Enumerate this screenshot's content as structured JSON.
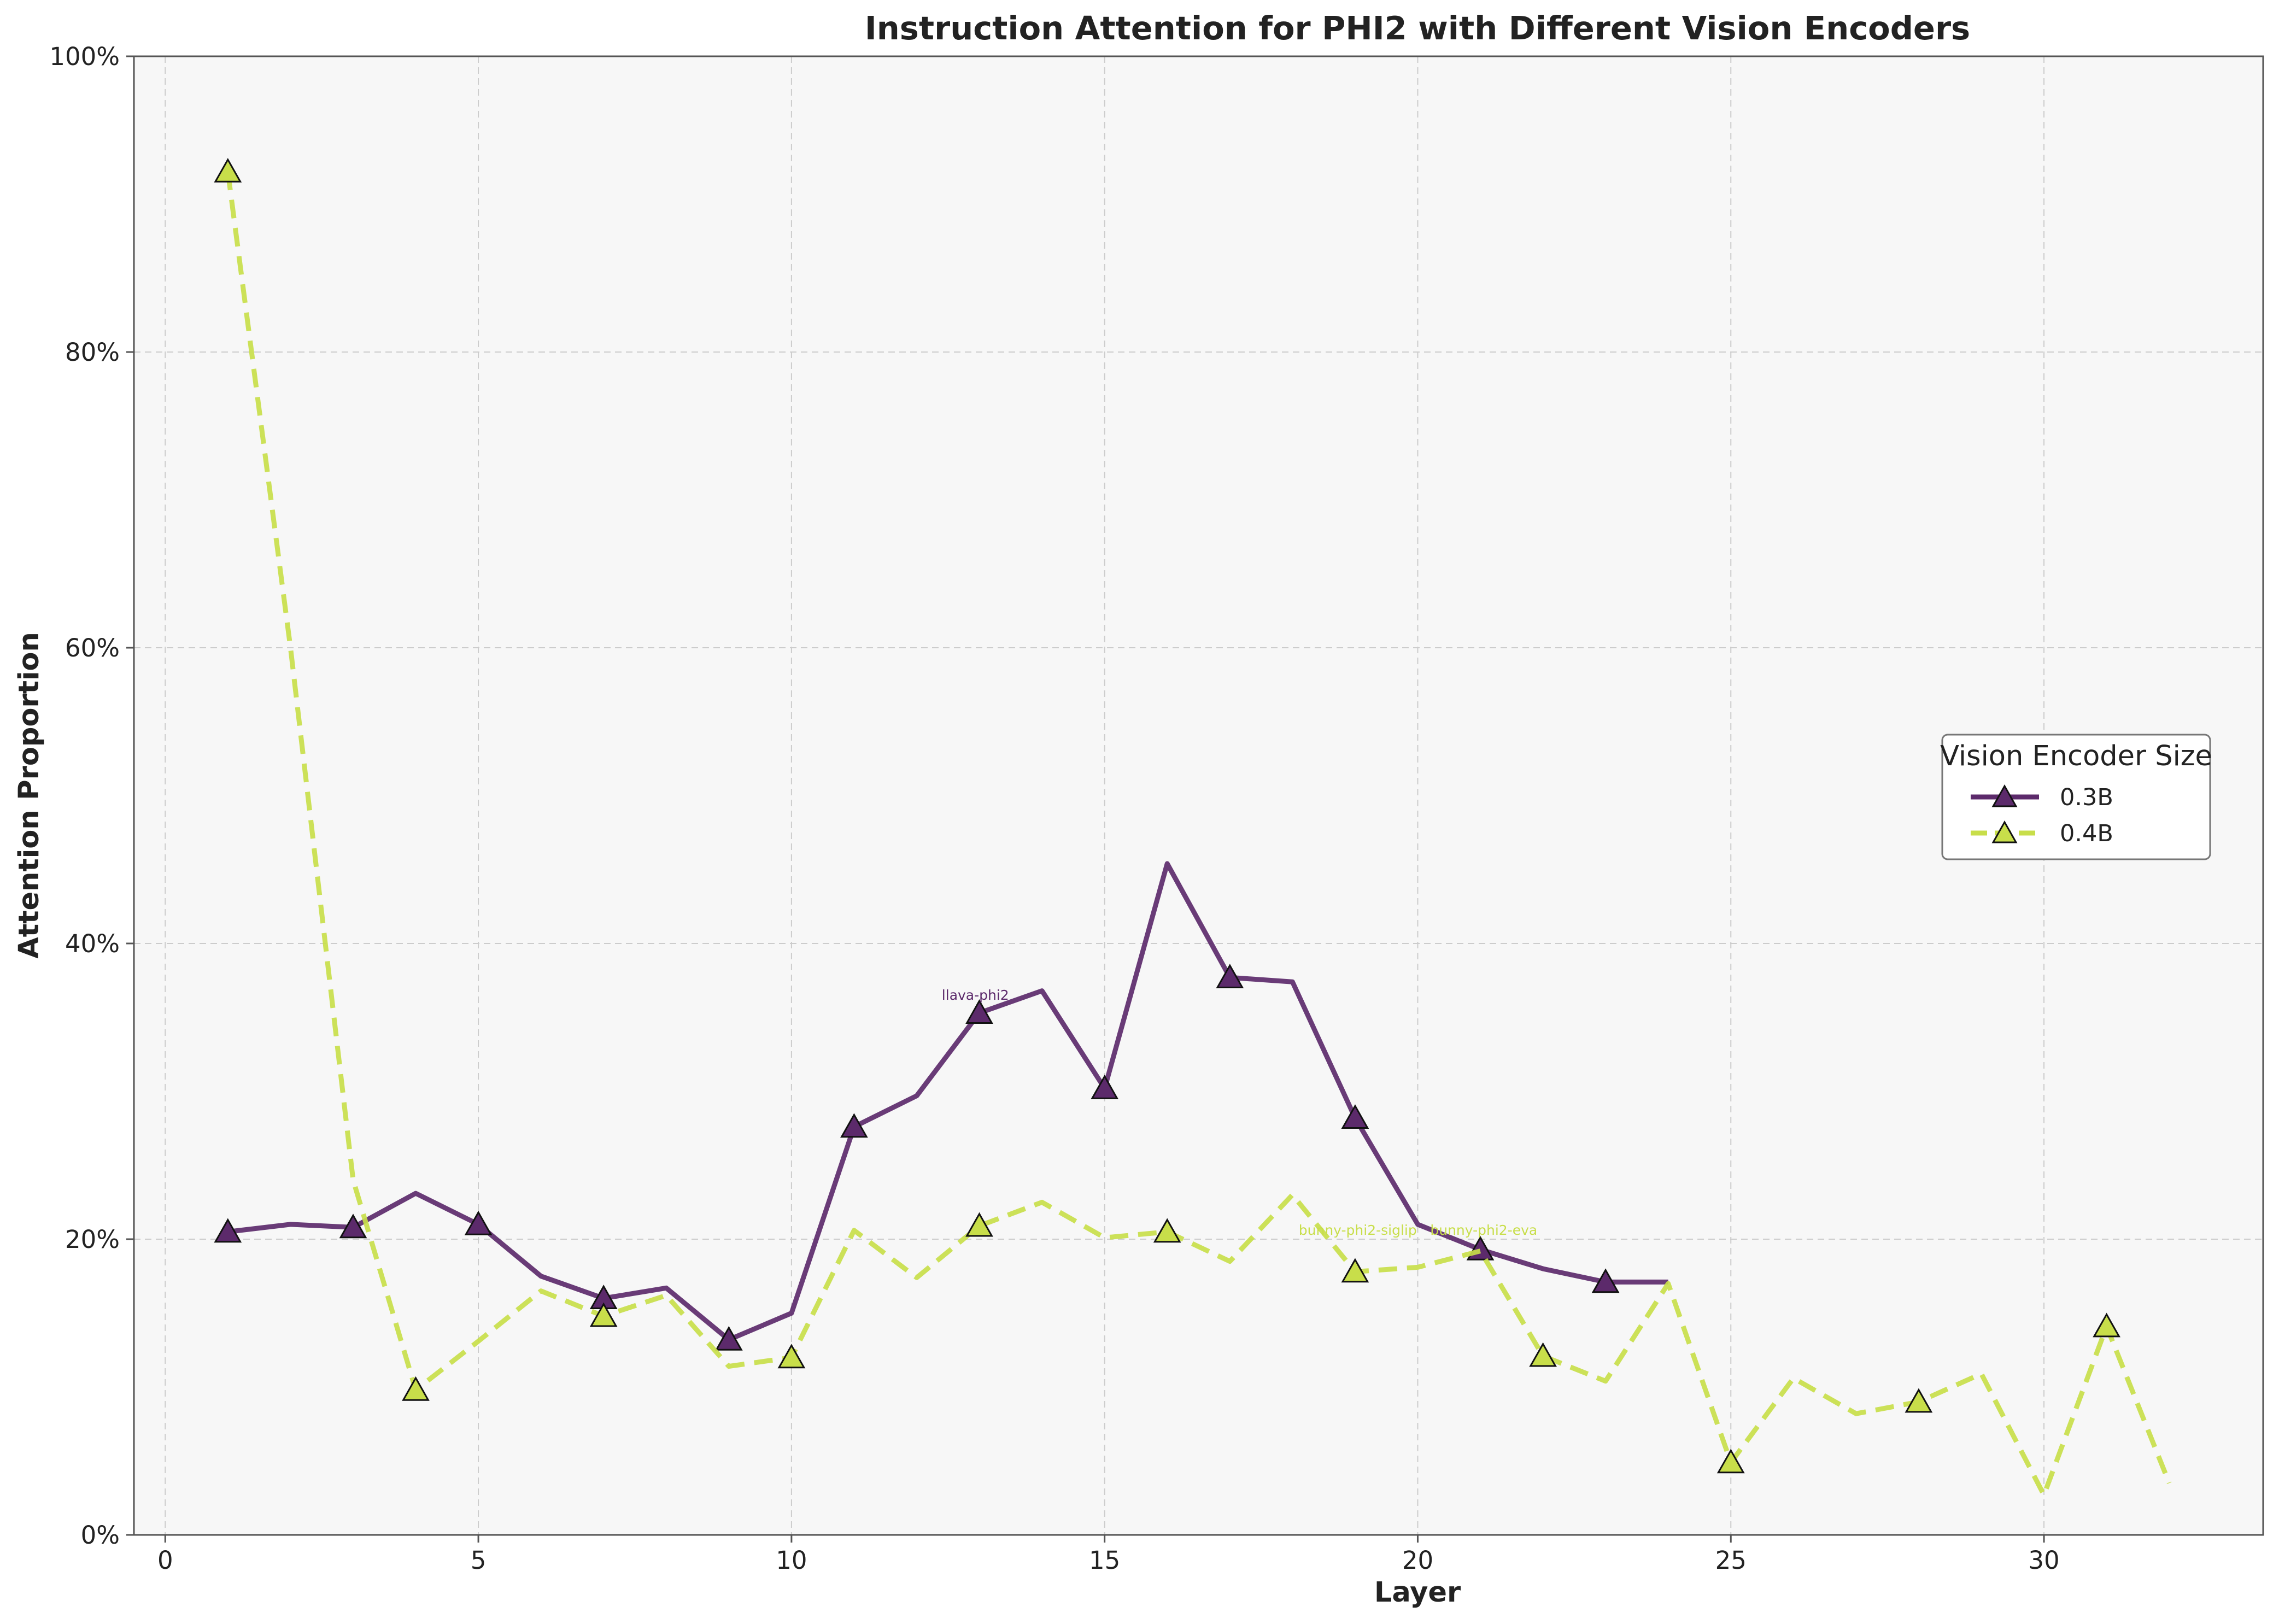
{
  "chart_data": {
    "type": "line",
    "title": "Instruction Attention for PHI2 with Different Vision Encoders",
    "xlabel": "Layer",
    "ylabel": "Attention Proportion",
    "xlim": [
      -0.5,
      33.5
    ],
    "ylim": [
      0,
      1
    ],
    "x_ticks": [
      0,
      5,
      10,
      15,
      20,
      25,
      30
    ],
    "x_tick_labels": [
      "0",
      "5",
      "10",
      "15",
      "20",
      "25",
      "30"
    ],
    "y_ticks": [
      0,
      0.2,
      0.4,
      0.6,
      0.8,
      1.0
    ],
    "y_tick_labels": [
      "0%",
      "20%",
      "40%",
      "60%",
      "80%",
      "100%"
    ],
    "grid": true,
    "legend": {
      "title": "Vision Encoder Size",
      "position": "center-right"
    },
    "series": [
      {
        "name": "0.3B",
        "color": "#5c2a6b",
        "line_style": "solid",
        "marker": "triangle",
        "x": [
          1,
          2,
          3,
          4,
          5,
          6,
          7,
          8,
          9,
          10,
          11,
          12,
          13,
          14,
          15,
          16,
          17,
          18,
          19,
          20,
          21,
          22,
          23,
          24
        ],
        "values": [
          0.205,
          0.21,
          0.208,
          0.231,
          0.21,
          0.175,
          0.16,
          0.167,
          0.132,
          0.15,
          0.276,
          0.297,
          0.353,
          0.368,
          0.302,
          0.454,
          0.377,
          0.374,
          0.282,
          0.21,
          0.193,
          0.18,
          0.171,
          0.171
        ],
        "marker_x": [
          1,
          3,
          5,
          7,
          9,
          11,
          13,
          15,
          17,
          19,
          21,
          23
        ]
      },
      {
        "name": "0.4B",
        "color": "#c8de4a",
        "line_style": "dashed",
        "marker": "triangle",
        "x": [
          1,
          2,
          3,
          4,
          5,
          6,
          7,
          8,
          9,
          10,
          11,
          12,
          13,
          14,
          15,
          16,
          17,
          18,
          19,
          20,
          21,
          22,
          23,
          24,
          25,
          26,
          27,
          28,
          29,
          30,
          31,
          32
        ],
        "values": [
          0.922,
          0.6,
          0.24,
          0.098,
          0.131,
          0.165,
          0.148,
          0.162,
          0.114,
          0.12,
          0.206,
          0.174,
          0.209,
          0.225,
          0.201,
          0.205,
          0.185,
          0.23,
          0.178,
          0.181,
          0.192,
          0.121,
          0.104,
          0.17,
          0.049,
          0.106,
          0.082,
          0.09,
          0.109,
          0.027,
          0.141,
          0.035
        ],
        "marker_x": [
          1,
          4,
          7,
          10,
          13,
          16,
          19,
          22,
          25,
          28,
          31
        ]
      }
    ],
    "annotations": [
      {
        "text": "llava-phi2",
        "x": 12.4,
        "y": 0.362,
        "series": 0
      },
      {
        "text": "bunny-phi2-siglip",
        "x": 18.1,
        "y": 0.203,
        "series": 1
      },
      {
        "text": "bunny-phi2-eva",
        "x": 20.2,
        "y": 0.203,
        "series": 1
      }
    ]
  }
}
